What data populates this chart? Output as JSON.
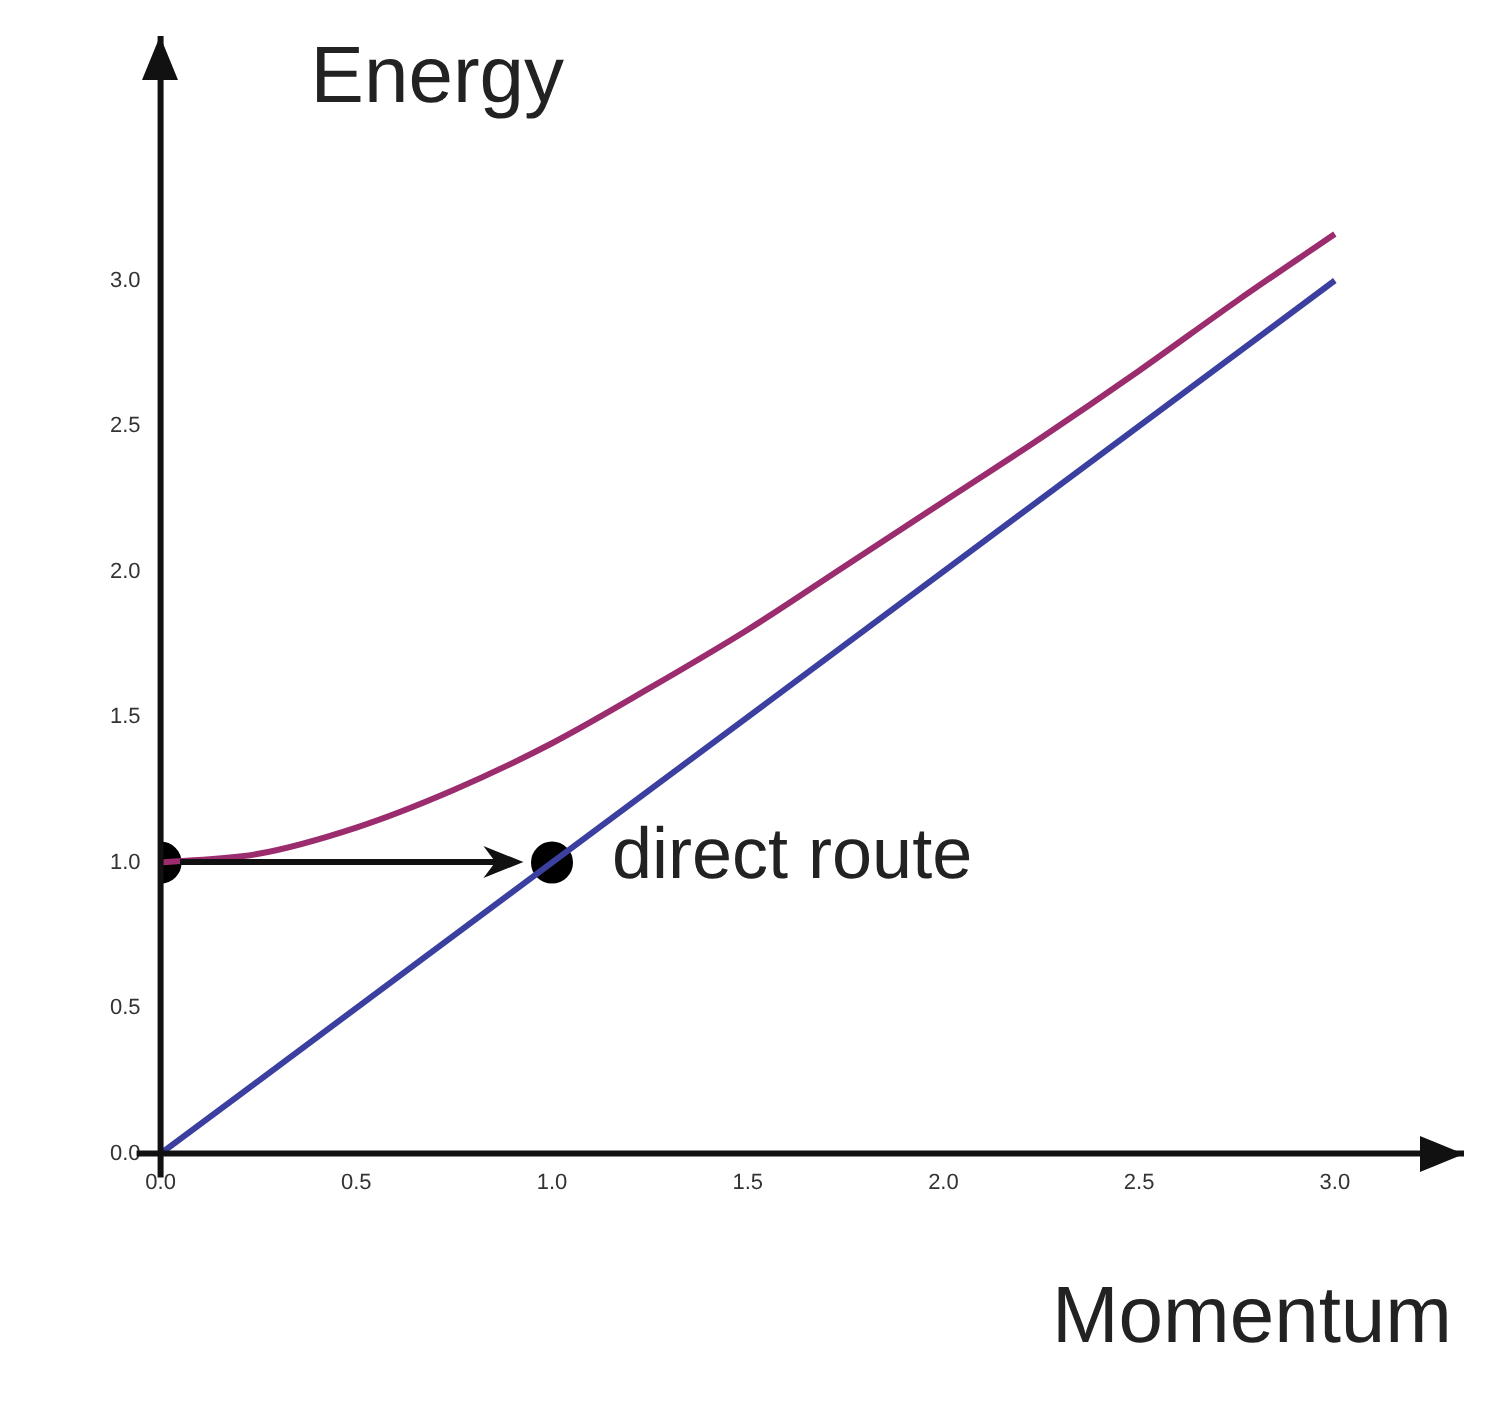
{
  "chart_data": {
    "type": "line",
    "xlabel": "Momentum",
    "ylabel": "Energy",
    "xlim": [
      0,
      3.33
    ],
    "ylim": [
      0,
      3.84
    ],
    "xticks": [
      {
        "value": 0,
        "label": "0.0"
      },
      {
        "value": 0.5,
        "label": "0.5"
      },
      {
        "value": 1,
        "label": "1.0"
      },
      {
        "value": 1.5,
        "label": "1.5"
      },
      {
        "value": 2,
        "label": "2.0"
      },
      {
        "value": 2.5,
        "label": "2.5"
      },
      {
        "value": 3,
        "label": "3.0"
      }
    ],
    "yticks": [
      {
        "value": 0,
        "label": "0.0"
      },
      {
        "value": 0.5,
        "label": "0.5"
      },
      {
        "value": 1,
        "label": "1.0"
      },
      {
        "value": 1.5,
        "label": "1.5"
      },
      {
        "value": 2,
        "label": "2.0"
      },
      {
        "value": 2.5,
        "label": "2.5"
      },
      {
        "value": 3,
        "label": "3.0"
      }
    ],
    "legend": false,
    "grid": false,
    "series": [
      {
        "marker": "none",
        "color": "#9b2c6e",
        "x": [
          0,
          0.25,
          0.5,
          0.75,
          1,
          1.25,
          1.5,
          1.75,
          2,
          2.25,
          2.5,
          2.75,
          3
        ],
        "values": [
          1,
          1.03,
          1.12,
          1.25,
          1.41,
          1.6,
          1.8,
          2.02,
          2.24,
          2.46,
          2.69,
          2.93,
          3.16
        ]
      },
      {
        "marker": "none",
        "color": "#3a3fa0",
        "x": [
          0,
          3
        ],
        "values": [
          0,
          3
        ]
      },
      {
        "type": "scatter",
        "marker": "circle",
        "color": "#000000",
        "x": [
          0,
          1
        ],
        "values": [
          1,
          1
        ]
      }
    ],
    "annotations": [
      {
        "text": "direct route",
        "x": 1,
        "y": 1
      }
    ]
  }
}
